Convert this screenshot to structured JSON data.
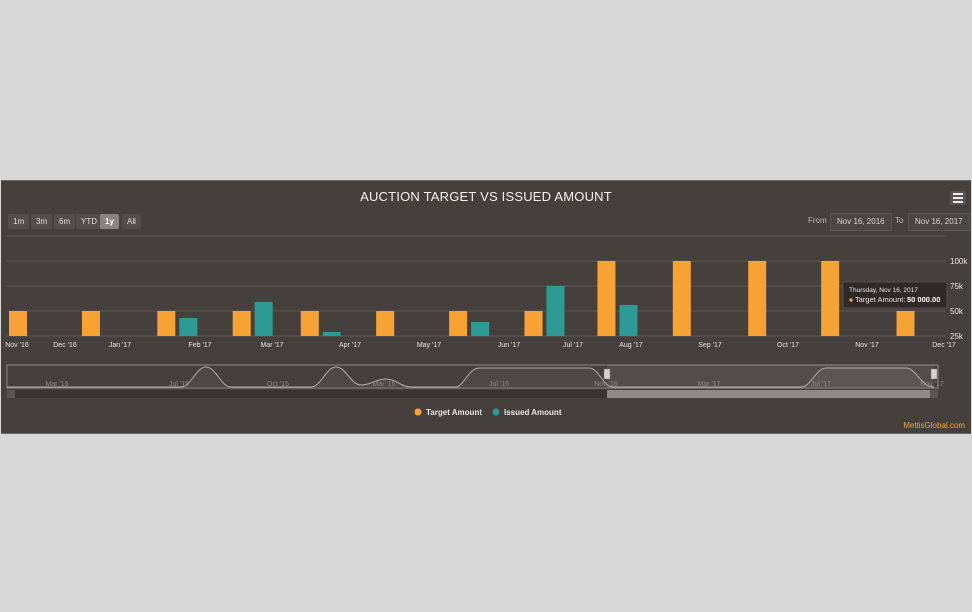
{
  "chart_data": {
    "type": "bar",
    "title": "AUCTION TARGET VS ISSUED AMOUNT",
    "x_tick_labels": [
      "Nov '16",
      "Dec '16",
      "Jan '17",
      "Feb '17",
      "Mar '17",
      "Apr '17",
      "May '17",
      "Jun '17",
      "Jul '17",
      "Aug '17",
      "Sep '17",
      "Oct '17",
      "Nov '17",
      "Dec '17"
    ],
    "y_tick_labels": [
      "100k",
      "75k",
      "50k",
      "25k"
    ],
    "ylim": [
      25000,
      100000
    ],
    "grid": true,
    "legend_position": "bottom-center",
    "series": [
      {
        "name": "Target Amount",
        "color": "#f7a235",
        "points": [
          [
            "2016-11-16",
            50000
          ],
          [
            "2016-12-16",
            50000
          ],
          [
            "2017-01-16",
            50000
          ],
          [
            "2017-02-16",
            50000
          ],
          [
            "2017-03-16",
            50000
          ],
          [
            "2017-04-16",
            50000
          ],
          [
            "2017-05-16",
            50000
          ],
          [
            "2017-06-16",
            50000
          ],
          [
            "2017-07-16",
            100000
          ],
          [
            "2017-08-16",
            100000
          ],
          [
            "2017-09-16",
            100000
          ],
          [
            "2017-10-16",
            100000
          ],
          [
            "2017-11-16",
            50000
          ]
        ]
      },
      {
        "name": "Issued Amount",
        "color": "#2e9a96",
        "points": [
          [
            "2017-01-16",
            43000
          ],
          [
            "2017-02-16",
            59000
          ],
          [
            "2017-03-16",
            29000
          ],
          [
            "2017-05-16",
            39000
          ],
          [
            "2017-06-16",
            75000
          ],
          [
            "2017-07-16",
            56000
          ]
        ]
      }
    ],
    "tooltip": {
      "date": "Thursday, Nov 16, 2017",
      "series_label": "Target Amount:",
      "value_text": "50 000.00"
    },
    "navigator": {
      "tick_labels": [
        "Mar '15",
        "Jul '15",
        "Oct '15",
        "Mar '16",
        "Jul '16",
        "Nov '16",
        "Mar '17",
        "Jul '17",
        "Nov '17"
      ]
    }
  },
  "range_selector": {
    "buttons": [
      "1m",
      "3m",
      "6m",
      "YTD",
      "1y",
      "All"
    ],
    "active": "1y",
    "from_label": "From",
    "from_value": "Nov 16, 2016",
    "to_label": "To",
    "to_value": "Nov 16, 2017"
  },
  "watermark": "MettisGlobal.com",
  "colors": {
    "background": "#46403d",
    "target": "#f7a235",
    "issued": "#2e9a96"
  }
}
